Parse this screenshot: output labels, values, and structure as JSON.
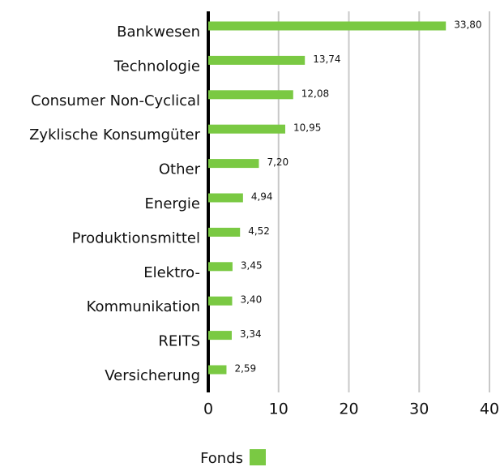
{
  "chart_data": {
    "type": "bar",
    "orientation": "horizontal",
    "categories": [
      "Bankwesen",
      "Technologie",
      "Consumer Non-Cyclical",
      "Zyklische Konsumgüter",
      "Other",
      "Energie",
      "Produktionsmittel",
      "Elektro-",
      "Kommunikation",
      "REITS",
      "Versicherung"
    ],
    "series": [
      {
        "name": "Fonds",
        "color": "#7ac943",
        "values": [
          33.8,
          13.74,
          12.08,
          10.95,
          7.2,
          4.94,
          4.52,
          3.45,
          3.4,
          3.34,
          2.59
        ],
        "value_labels": [
          "33,80",
          "13,74",
          "12,08",
          "10,95",
          "7,20",
          "4,94",
          "4,52",
          "3,45",
          "3,40",
          "3,34",
          "2,59"
        ]
      }
    ],
    "xlim": [
      0,
      40
    ],
    "xticks": [
      0,
      10,
      20,
      30,
      40
    ],
    "grid": true,
    "legend": "bottom"
  }
}
